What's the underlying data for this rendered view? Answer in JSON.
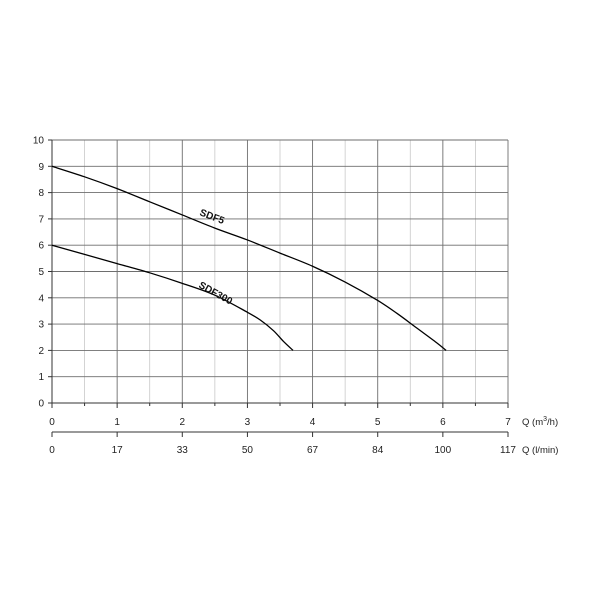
{
  "chart_data": {
    "type": "line",
    "xlabel": "Q (m³/h)",
    "xlabel_base": "Q (m",
    "xlabel_sup": "3",
    "xlabel_tail": "/h)",
    "x2label": "Q (l/min)",
    "xlim": [
      0,
      7
    ],
    "ylim": [
      0,
      10
    ],
    "x_ticks": [
      "0",
      "1",
      "2",
      "3",
      "4",
      "5",
      "6",
      "7"
    ],
    "y_ticks": [
      "0",
      "1",
      "2",
      "3",
      "4",
      "5",
      "6",
      "7",
      "8",
      "9",
      "10"
    ],
    "x2_ticks": [
      "0",
      "17",
      "33",
      "50",
      "67",
      "84",
      "100",
      "117"
    ],
    "grid": true,
    "series": [
      {
        "name": "SDF5",
        "color": "#000000",
        "x": [
          0,
          0.5,
          1,
          1.5,
          2,
          2.5,
          3,
          3.5,
          4,
          4.5,
          5,
          5.3,
          5.6,
          5.9,
          6.05
        ],
        "y": [
          9,
          8.6,
          8.15,
          7.65,
          7.15,
          6.65,
          6.2,
          5.7,
          5.2,
          4.6,
          3.9,
          3.4,
          2.85,
          2.3,
          2
        ]
      },
      {
        "name": "SDF300",
        "color": "#000000",
        "x": [
          0,
          0.5,
          1,
          1.5,
          2,
          2.5,
          3,
          3.2,
          3.4,
          3.55,
          3.7
        ],
        "y": [
          6,
          5.65,
          5.3,
          4.95,
          4.55,
          4.1,
          3.45,
          3.15,
          2.75,
          2.35,
          2
        ]
      }
    ]
  }
}
